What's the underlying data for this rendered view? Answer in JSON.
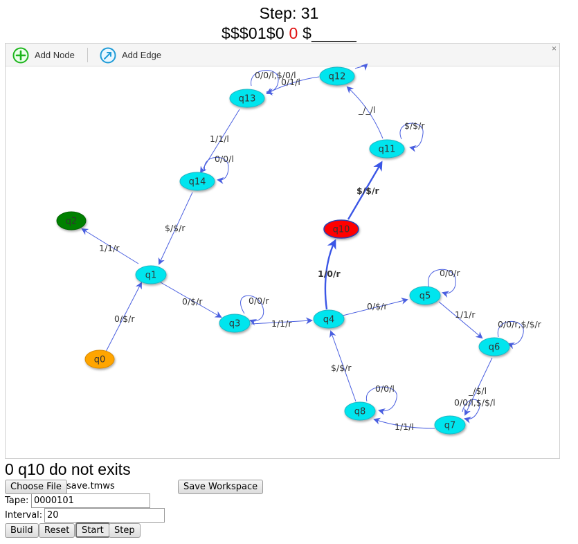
{
  "header": {
    "step_label": "Step: 31",
    "tape_before": "$$$01$0 ",
    "tape_head": "0",
    "tape_after": " $_____"
  },
  "toolbar": {
    "add_node": "Add Node",
    "add_edge": "Add Edge",
    "close": "×"
  },
  "graph": {
    "nodes": [
      {
        "id": "q0",
        "label": "q0",
        "color": "#ffa500",
        "state": "start"
      },
      {
        "id": "q1",
        "label": "q1",
        "color": "#00e5ee"
      },
      {
        "id": "q2",
        "label": "q2",
        "color": "#008000",
        "state": "accept"
      },
      {
        "id": "q3",
        "label": "q3",
        "color": "#00e5ee"
      },
      {
        "id": "q4",
        "label": "q4",
        "color": "#00e5ee"
      },
      {
        "id": "q5",
        "label": "q5",
        "color": "#00e5ee"
      },
      {
        "id": "q6",
        "label": "q6",
        "color": "#00e5ee"
      },
      {
        "id": "q7",
        "label": "q7",
        "color": "#00e5ee"
      },
      {
        "id": "q8",
        "label": "q8",
        "color": "#00e5ee"
      },
      {
        "id": "q10",
        "label": "q10",
        "color": "#ff0000",
        "state": "current"
      },
      {
        "id": "q11",
        "label": "q11",
        "color": "#00e5ee"
      },
      {
        "id": "q12",
        "label": "q12",
        "color": "#00e5ee"
      },
      {
        "id": "q13",
        "label": "q13",
        "color": "#00e5ee"
      },
      {
        "id": "q14",
        "label": "q14",
        "color": "#00e5ee"
      }
    ],
    "edges": [
      {
        "from": "q0",
        "to": "q1",
        "label": "0/$/r"
      },
      {
        "from": "q1",
        "to": "q2",
        "label": "1/1/r"
      },
      {
        "from": "q1",
        "to": "q3",
        "label": "0/$/r"
      },
      {
        "from": "q3",
        "to": "q3",
        "label": "0/0/r"
      },
      {
        "from": "q3",
        "to": "q4",
        "label": "1/1/r"
      },
      {
        "from": "q4",
        "to": "q5",
        "label": "0/$/r"
      },
      {
        "from": "q5",
        "to": "q5",
        "label": "0/0/r"
      },
      {
        "from": "q5",
        "to": "q6",
        "label": "1/1/r"
      },
      {
        "from": "q6",
        "to": "q6",
        "label": "0/0/r,$/$/r"
      },
      {
        "from": "q6",
        "to": "q7",
        "label": "_/$/l"
      },
      {
        "from": "q7",
        "to": "q7",
        "label": "0/0/l,$/$/l"
      },
      {
        "from": "q7",
        "to": "q8",
        "label": "1/1/l"
      },
      {
        "from": "q8",
        "to": "q8",
        "label": "0/0/l"
      },
      {
        "from": "q8",
        "to": "q4",
        "label": "$/$/r"
      },
      {
        "from": "q4",
        "to": "q10",
        "label": "1/0/r",
        "active": true
      },
      {
        "from": "q10",
        "to": "q11",
        "label": "$/$/r",
        "active": true
      },
      {
        "from": "q11",
        "to": "q11",
        "label": "$/$/r"
      },
      {
        "from": "q11",
        "to": "q12",
        "label": "_/_/l"
      },
      {
        "from": "q12",
        "to": "q13",
        "label": "0/1/l"
      },
      {
        "from": "q13",
        "to": "q13",
        "label": "0/0/l,$/0/l"
      },
      {
        "from": "q13",
        "to": "q14",
        "label": "1/1/l"
      },
      {
        "from": "q14",
        "to": "q14",
        "label": "0/0/l"
      },
      {
        "from": "q14",
        "to": "q1",
        "label": "$/$/r"
      }
    ],
    "edge_color": "#4a5fe0",
    "active_edge_color": "#3b56e6"
  },
  "message": "0 q10 do not exits",
  "controls": {
    "choose_file": "Choose File",
    "file_name": "save.tmws",
    "save_workspace": "Save Workspace",
    "tape_label": "Tape:",
    "tape_value": "0000101",
    "interval_label": "Interval:",
    "interval_value": "20",
    "build": "Build",
    "reset": "Reset",
    "start": "Start",
    "step": "Step"
  }
}
